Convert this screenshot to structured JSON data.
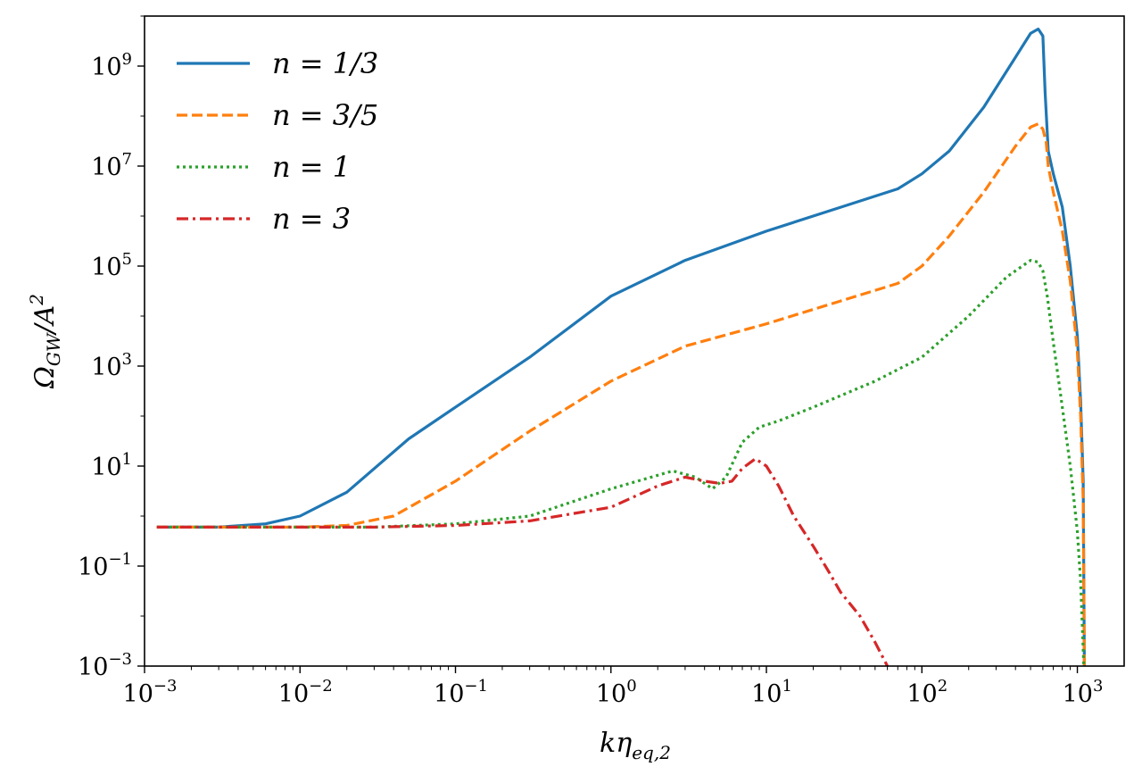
{
  "chart_data": {
    "type": "line",
    "xscale": "log",
    "yscale": "log",
    "xlim": [
      0.001,
      2000
    ],
    "ylim": [
      0.001,
      10000000000
    ],
    "xlabel": {
      "base": "kη",
      "sub": "eq,2"
    },
    "ylabel": {
      "base": "Ω",
      "sub": "GW",
      "mid": "/A",
      "sup": "2"
    },
    "x_ticks": [
      {
        "value": 0.001,
        "base": "10",
        "exp": "−3"
      },
      {
        "value": 0.01,
        "base": "10",
        "exp": "−2"
      },
      {
        "value": 0.1,
        "base": "10",
        "exp": "−1"
      },
      {
        "value": 1,
        "base": "10",
        "exp": "0"
      },
      {
        "value": 10,
        "base": "10",
        "exp": "1"
      },
      {
        "value": 100,
        "base": "10",
        "exp": "2"
      },
      {
        "value": 1000,
        "base": "10",
        "exp": "3"
      }
    ],
    "y_ticks": [
      {
        "value": 0.001,
        "base": "10",
        "exp": "−3"
      },
      {
        "value": 0.1,
        "base": "10",
        "exp": "−1"
      },
      {
        "value": 10,
        "base": "10",
        "exp": "1"
      },
      {
        "value": 1000,
        "base": "10",
        "exp": "3"
      },
      {
        "value": 100000,
        "base": "10",
        "exp": "5"
      },
      {
        "value": 10000000,
        "base": "10",
        "exp": "7"
      },
      {
        "value": 1000000000,
        "base": "10",
        "exp": "9"
      }
    ],
    "legend_position": "top-left",
    "series": [
      {
        "name": "n = 1/3",
        "color": "#1f77b4",
        "style": "solid",
        "x": [
          0.0012,
          0.003,
          0.006,
          0.01,
          0.02,
          0.05,
          0.1,
          0.3,
          1,
          3,
          10,
          30,
          70,
          100,
          150,
          250,
          400,
          500,
          560,
          600,
          620,
          650,
          700,
          800,
          900,
          1000,
          1050,
          1090,
          1110
        ],
        "y": [
          0.6,
          0.6,
          0.7,
          1.0,
          3.0,
          35,
          150,
          1500,
          25000,
          130000,
          500000,
          1500000,
          3500000,
          7000000,
          20000000,
          150000000,
          1500000000,
          4500000000,
          5500000000,
          4000000000,
          300000000,
          20000000,
          7000000,
          1500000,
          100000,
          4000,
          200,
          5,
          0.001
        ]
      },
      {
        "name": "n = 3/5",
        "color": "#ff7f0e",
        "style": "dashed",
        "x": [
          0.0012,
          0.01,
          0.02,
          0.04,
          0.1,
          0.3,
          1,
          3,
          10,
          30,
          70,
          100,
          150,
          250,
          400,
          500,
          560,
          600,
          630,
          650,
          700,
          800,
          900,
          1000,
          1050,
          1090,
          1110
        ],
        "y": [
          0.6,
          0.6,
          0.65,
          1.0,
          5,
          50,
          500,
          2500,
          7000,
          20000,
          45000,
          100000,
          400000,
          3000000,
          25000000,
          60000000,
          70000000,
          55000000,
          30000000,
          10000000,
          3000000,
          500000,
          50000,
          2000,
          100,
          2,
          0.001
        ]
      },
      {
        "name": "n = 1",
        "color": "#2ca02c",
        "style": "dotted",
        "x": [
          0.0012,
          0.03,
          0.1,
          0.3,
          1,
          2.5,
          3.5,
          4.5,
          5.5,
          7,
          9,
          12,
          20,
          50,
          100,
          200,
          350,
          500,
          560,
          600,
          640,
          700,
          800,
          900,
          1000,
          1050,
          1100
        ],
        "y": [
          0.6,
          0.6,
          0.7,
          1.0,
          3.5,
          8,
          6,
          3.5,
          6,
          30,
          60,
          80,
          150,
          500,
          1500,
          10000,
          60000,
          130000,
          120000,
          80000,
          25000,
          3000,
          150,
          10,
          0.5,
          0.05,
          0.001
        ]
      },
      {
        "name": "n = 3",
        "color": "#d62728",
        "style": "dashdot",
        "x": [
          0.0012,
          0.03,
          0.1,
          0.3,
          1,
          2,
          3,
          4,
          5,
          6,
          7,
          8.5,
          10,
          12,
          15,
          20,
          25,
          30,
          40,
          50,
          60
        ],
        "y": [
          0.6,
          0.6,
          0.65,
          0.8,
          1.5,
          4,
          6,
          5,
          4.5,
          5,
          9,
          14,
          10,
          4,
          1,
          0.25,
          0.08,
          0.03,
          0.01,
          0.003,
          0.001
        ]
      }
    ]
  }
}
